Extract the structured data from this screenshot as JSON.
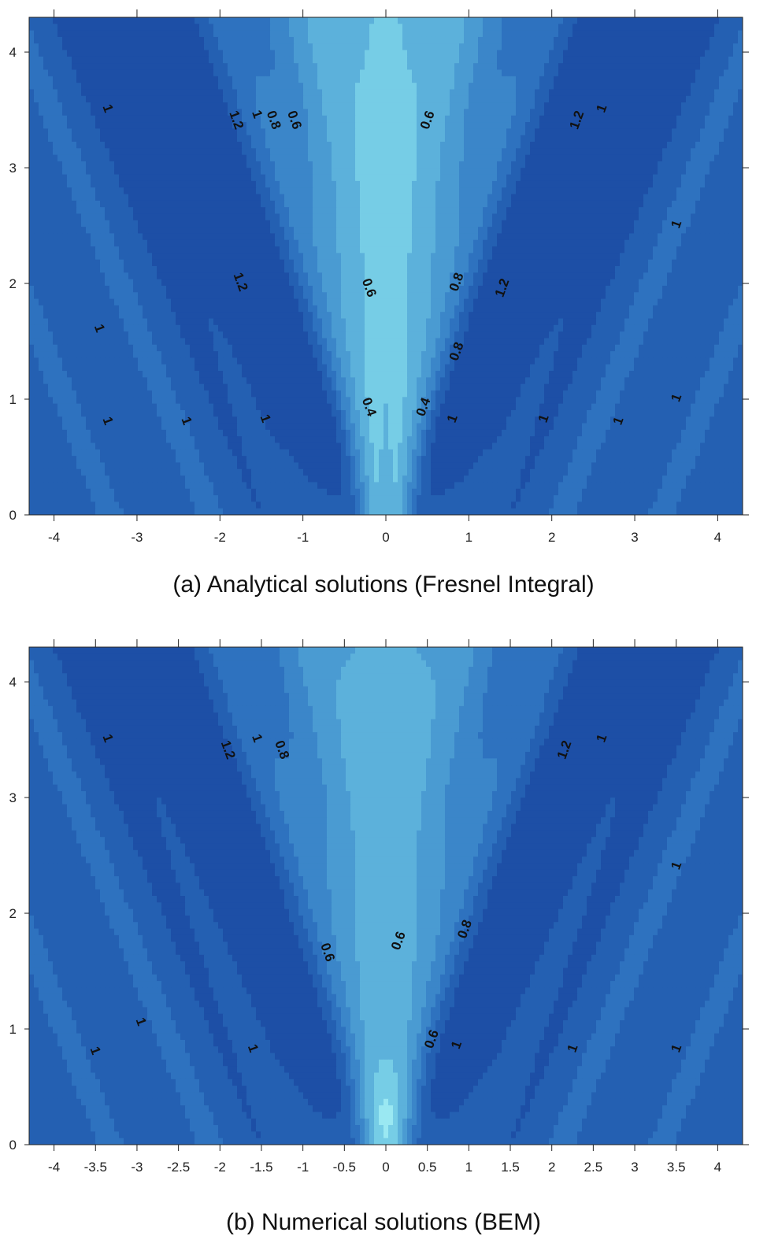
{
  "chart_data": [
    {
      "type": "contour",
      "caption": "(a) Analytical solutions (Fresnel Integral)",
      "xlim": [
        -4.3,
        4.3
      ],
      "ylim": [
        0,
        4.3
      ],
      "x_ticks": [
        -4,
        -3,
        -2,
        -1,
        0,
        1,
        2,
        3,
        4
      ],
      "x_tick_labels": [
        "-4",
        "-3",
        "-2",
        "-1",
        "0",
        "1",
        "2",
        "3",
        "4"
      ],
      "y_ticks": [
        0,
        1,
        2,
        3,
        4
      ],
      "y_tick_labels": [
        "0",
        "1",
        "2",
        "3",
        "4"
      ],
      "colormap": [
        "#1d4fa6",
        "#2460b2",
        "#2e72bf",
        "#3b86c9",
        "#4a9bd2",
        "#5cb1db",
        "#76cde6",
        "#9ae8f2"
      ],
      "contour_labels": [
        {
          "text": "1",
          "x": -3.4,
          "y": 3.5
        },
        {
          "text": "1.2",
          "x": -1.85,
          "y": 3.4
        },
        {
          "text": "1",
          "x": -1.6,
          "y": 3.45
        },
        {
          "text": "0.8",
          "x": -1.4,
          "y": 3.4
        },
        {
          "text": "0.6",
          "x": -1.15,
          "y": 3.4
        },
        {
          "text": "0.6",
          "x": 0.55,
          "y": 3.4
        },
        {
          "text": "1.2",
          "x": 2.35,
          "y": 3.4
        },
        {
          "text": "1",
          "x": 2.65,
          "y": 3.5
        },
        {
          "text": "1",
          "x": 3.55,
          "y": 2.5
        },
        {
          "text": "1.2",
          "x": -1.8,
          "y": 2.0
        },
        {
          "text": "0.6",
          "x": -0.25,
          "y": 1.95
        },
        {
          "text": "0.8",
          "x": 0.9,
          "y": 2.0
        },
        {
          "text": "1.2",
          "x": 1.45,
          "y": 1.95
        },
        {
          "text": "1",
          "x": -3.5,
          "y": 1.6
        },
        {
          "text": "0.8",
          "x": 0.9,
          "y": 1.4
        },
        {
          "text": "1",
          "x": -3.4,
          "y": 0.8
        },
        {
          "text": "1",
          "x": -2.45,
          "y": 0.8
        },
        {
          "text": "1",
          "x": -1.5,
          "y": 0.82
        },
        {
          "text": "0.4",
          "x": -0.25,
          "y": 0.92
        },
        {
          "text": "0.4",
          "x": 0.5,
          "y": 0.92
        },
        {
          "text": "1",
          "x": 0.85,
          "y": 0.82
        },
        {
          "text": "1",
          "x": 1.95,
          "y": 0.82
        },
        {
          "text": "1",
          "x": 2.85,
          "y": 0.8
        },
        {
          "text": "1",
          "x": 3.55,
          "y": 1.0
        }
      ]
    },
    {
      "type": "contour",
      "caption": "(b) Numerical solutions (BEM)",
      "xlim": [
        -4.3,
        4.3
      ],
      "ylim": [
        0,
        4.3
      ],
      "x_ticks": [
        -4,
        -3.5,
        -3,
        -2.5,
        -2,
        -1.5,
        -1,
        -0.5,
        0,
        0.5,
        1,
        1.5,
        2,
        2.5,
        3,
        3.5,
        4
      ],
      "x_tick_labels": [
        "-4",
        "-3.5",
        "-3",
        "-2.5",
        "-2",
        "-1.5",
        "-1",
        "-0.5",
        "0",
        "0.5",
        "1",
        "1.5",
        "2",
        "2.5",
        "3",
        "3.5",
        "4"
      ],
      "y_ticks": [
        0,
        1,
        2,
        3,
        4
      ],
      "y_tick_labels": [
        "0",
        "1",
        "2",
        "3",
        "4"
      ],
      "colormap": [
        "#1d4fa6",
        "#2460b2",
        "#2e72bf",
        "#3b86c9",
        "#4a9bd2",
        "#5cb1db",
        "#76cde6",
        "#9ae8f2"
      ],
      "contour_labels": [
        {
          "text": "1",
          "x": -3.4,
          "y": 3.5
        },
        {
          "text": "1.2",
          "x": -1.95,
          "y": 3.4
        },
        {
          "text": "1",
          "x": -1.6,
          "y": 3.5
        },
        {
          "text": "0.8",
          "x": -1.3,
          "y": 3.4
        },
        {
          "text": "1.2",
          "x": 2.2,
          "y": 3.4
        },
        {
          "text": "1",
          "x": 2.65,
          "y": 3.5
        },
        {
          "text": "1",
          "x": 3.55,
          "y": 2.4
        },
        {
          "text": "0.6",
          "x": -0.75,
          "y": 1.65
        },
        {
          "text": "0.6",
          "x": 0.2,
          "y": 1.75
        },
        {
          "text": "0.8",
          "x": 1.0,
          "y": 1.85
        },
        {
          "text": "1",
          "x": -3.0,
          "y": 1.05
        },
        {
          "text": "1",
          "x": -3.55,
          "y": 0.8
        },
        {
          "text": "1",
          "x": -1.65,
          "y": 0.82
        },
        {
          "text": "0.6",
          "x": 0.6,
          "y": 0.9
        },
        {
          "text": "1",
          "x": 0.9,
          "y": 0.85
        },
        {
          "text": "1",
          "x": 2.3,
          "y": 0.82
        },
        {
          "text": "1",
          "x": 3.55,
          "y": 0.82
        }
      ]
    }
  ]
}
